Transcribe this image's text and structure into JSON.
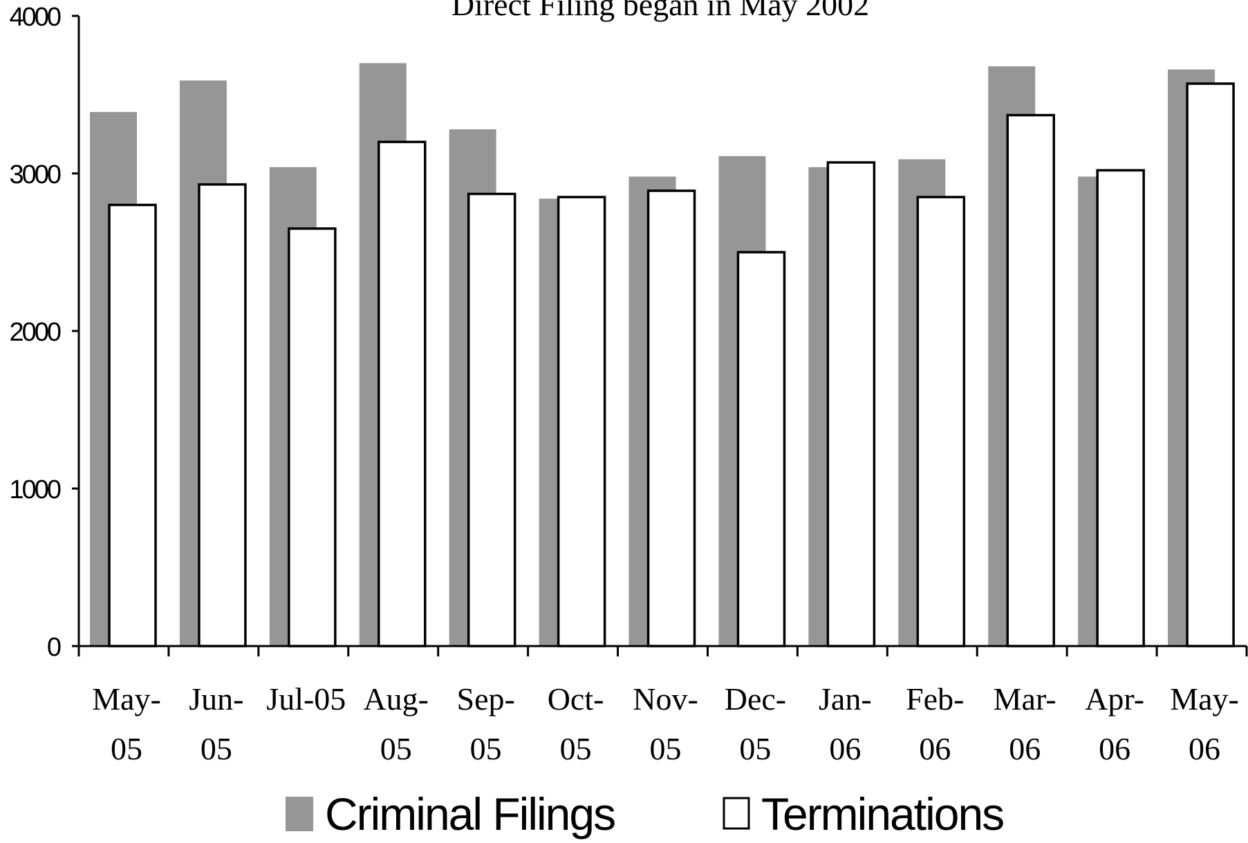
{
  "chart_data": {
    "type": "bar",
    "title": "Direct Filing began in May 2002",
    "xlabel": "",
    "ylabel": "",
    "ylim": [
      0,
      4000
    ],
    "yticks": [
      0,
      1000,
      2000,
      3000,
      4000
    ],
    "grid": false,
    "legend_position": "bottom",
    "categories": [
      [
        "May-",
        "05"
      ],
      [
        "Jun-",
        "05"
      ],
      [
        "Jul-05"
      ],
      [
        "Aug-",
        "05"
      ],
      [
        "Sep-",
        "05"
      ],
      [
        "Oct-",
        "05"
      ],
      [
        "Nov-",
        "05"
      ],
      [
        "Dec-",
        "05"
      ],
      [
        "Jan-",
        "06"
      ],
      [
        "Feb-",
        "06"
      ],
      [
        "Mar-",
        "06"
      ],
      [
        "Apr-",
        "06"
      ],
      [
        "May-",
        "06"
      ]
    ],
    "series": [
      {
        "name": "Criminal Filings",
        "color": "#969696",
        "values": [
          3390,
          3590,
          3040,
          3700,
          3280,
          2840,
          2980,
          3110,
          3040,
          3090,
          3680,
          2980,
          3660
        ]
      },
      {
        "name": "Terminations",
        "color": "#ffffff",
        "stroke": "#000000",
        "values": [
          2800,
          2930,
          2650,
          3200,
          2870,
          2850,
          2890,
          2500,
          3070,
          2850,
          3370,
          3020,
          3570
        ]
      }
    ]
  }
}
